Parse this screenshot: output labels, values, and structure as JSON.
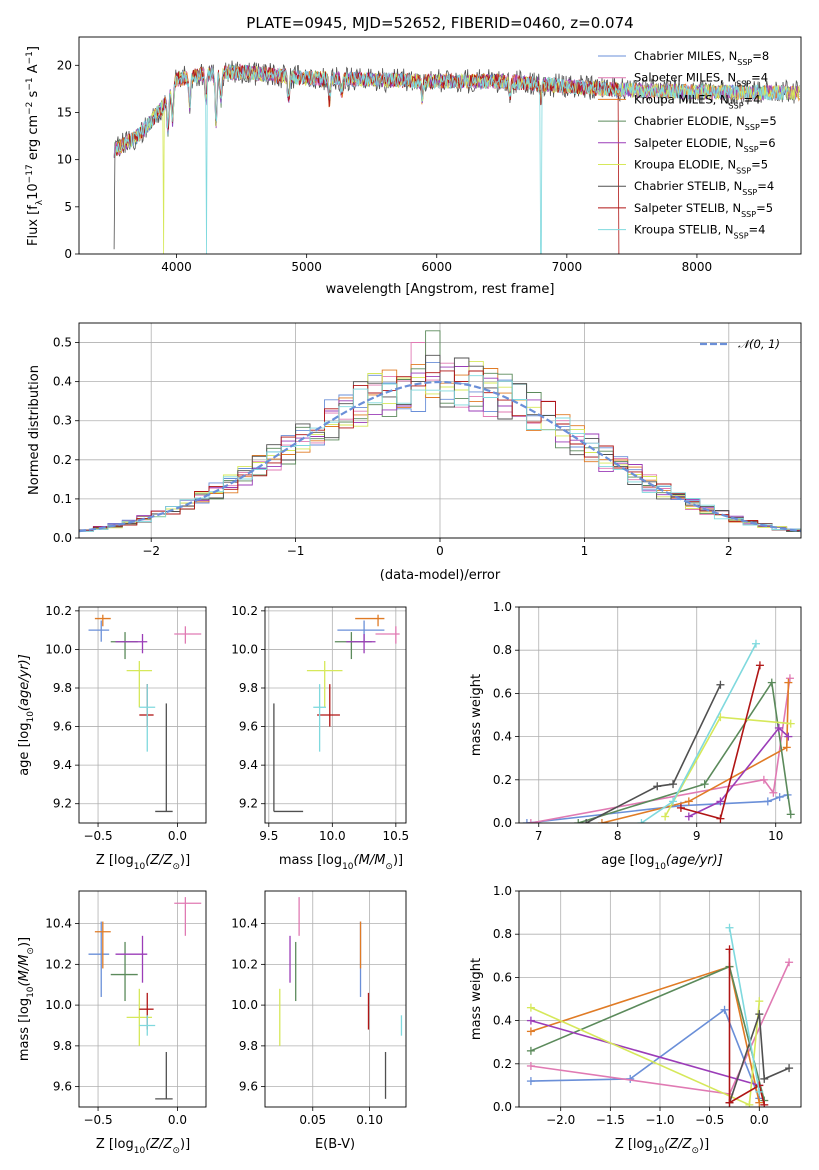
{
  "title": "PLATE=0945, MJD=52652, FIBERID=0460, z=0.074",
  "series": [
    {
      "name": "Chabrier MILES, N<sub>SSP</sub>=8",
      "label_main": "Chabrier MILES, N",
      "label_sub": "SSP",
      "label_tail": "=8",
      "color": "#6a8fd8"
    },
    {
      "name": "Salpeter MILES",
      "label_main": "Salpeter MILES, N",
      "label_sub": "SSP",
      "label_tail": "=4",
      "color": "#e07ab3"
    },
    {
      "name": "Kroupa MILES",
      "label_main": "Kroupa MILES, N",
      "label_sub": "SSP",
      "label_tail": "=4",
      "color": "#e07b25"
    },
    {
      "name": "Chabrier ELODIE",
      "label_main": "Chabrier ELODIE, N",
      "label_sub": "SSP",
      "label_tail": "=5",
      "color": "#5b8a5b"
    },
    {
      "name": "Salpeter ELODIE",
      "label_main": "Salpeter ELODIE, N",
      "label_sub": "SSP",
      "label_tail": "=6",
      "color": "#9b3db8"
    },
    {
      "name": "Kroupa ELODIE",
      "label_main": "Kroupa ELODIE, N",
      "label_sub": "SSP",
      "label_tail": "=5",
      "color": "#d6e85a"
    },
    {
      "name": "Chabrier STELIB",
      "label_main": "Chabrier STELIB, N",
      "label_sub": "SSP",
      "label_tail": "=4",
      "color": "#505050"
    },
    {
      "name": "Salpeter STELIB",
      "label_main": "Salpeter STELIB, N",
      "label_sub": "SSP",
      "label_tail": "=5",
      "color": "#b01515"
    },
    {
      "name": "Kroupa STELIB",
      "label_main": "Kroupa STELIB, N",
      "label_sub": "SSP",
      "label_tail": "=4",
      "color": "#7fd9de"
    }
  ],
  "chart_data": [
    {
      "id": "spectrum",
      "type": "line",
      "xlabel": "wavelength [Angstrom, rest frame]",
      "ylabel": "Flux [f_λ 10^-17 erg cm^-2 s^-1 A^-1]",
      "xlim": [
        3250,
        8800
      ],
      "ylim": [
        0,
        23
      ],
      "xticks": [
        4000,
        5000,
        6000,
        7000,
        8000
      ],
      "yticks": [
        0,
        5,
        10,
        15,
        20
      ],
      "grid": false,
      "legend": "top-right",
      "continuum": [
        [
          3520,
          11
        ],
        [
          3700,
          12.5
        ],
        [
          3800,
          14
        ],
        [
          3900,
          15.8
        ],
        [
          4000,
          18.5
        ],
        [
          4200,
          19
        ],
        [
          4500,
          19.3
        ],
        [
          5000,
          18.6
        ],
        [
          5500,
          18.5
        ],
        [
          6000,
          18.3
        ],
        [
          6500,
          18.3
        ],
        [
          7000,
          17.8
        ],
        [
          7400,
          17.4
        ],
        [
          7600,
          17.3
        ],
        [
          8000,
          17.2
        ],
        [
          8500,
          17.1
        ],
        [
          8800,
          17.1
        ]
      ],
      "absorption": [
        [
          3934,
          3.5
        ],
        [
          3969,
          3.5
        ],
        [
          4101,
          3
        ],
        [
          4227,
          2.5
        ],
        [
          4304,
          5
        ],
        [
          4340,
          3
        ],
        [
          4861,
          2.5
        ],
        [
          5175,
          2.5
        ],
        [
          5270,
          1.5
        ],
        [
          5890,
          2
        ],
        [
          6563,
          1.5
        ],
        [
          6800,
          1.5
        ]
      ],
      "drops": [
        [
          3520,
          0.5
        ],
        [
          3900,
          0
        ],
        [
          4230,
          0
        ],
        [
          6800,
          0
        ],
        [
          7400,
          0
        ]
      ]
    },
    {
      "id": "residuals",
      "type": "histogram",
      "xlabel": "(data-model)/error",
      "ylabel": "Normed distribution",
      "xlim": [
        -2.5,
        2.5
      ],
      "ylim": [
        0,
        0.55
      ],
      "xticks": [
        -2,
        -1,
        0,
        1,
        2
      ],
      "yticks": [
        0.0,
        0.1,
        0.2,
        0.3,
        0.4,
        0.5
      ],
      "grid": true,
      "bin_width": 0.1,
      "reference_curve": "𝒩(0, 1)",
      "legend": "top-right"
    },
    {
      "id": "age-vs-Z",
      "type": "scatter",
      "xlabel_pre": "Z [log",
      "xlabel_sub": "10",
      "xlabel_post": "(Z/Z",
      "xlabel_sun": "⊙",
      "xlabel_end": ")]",
      "ylabel_pre": "age  [log",
      "ylabel_sub": "10",
      "ylabel_post": "(age/yr)]",
      "xlim": [
        -0.62,
        0.18
      ],
      "ylim": [
        9.1,
        10.22
      ],
      "xticks": [
        -0.5,
        0.0
      ],
      "yticks": [
        9.2,
        9.4,
        9.6,
        9.8,
        10.0,
        10.2
      ],
      "grid": true
    },
    {
      "id": "age-vs-mass",
      "type": "scatter",
      "xlabel_pre": "mass [log",
      "xlabel_sub": "10",
      "xlabel_post": "(M/M",
      "xlabel_sun": "⊙",
      "xlabel_end": ")]",
      "xlim": [
        9.47,
        10.58
      ],
      "ylim": [
        9.1,
        10.22
      ],
      "xticks": [
        9.5,
        10.0,
        10.5
      ],
      "yticks": [
        9.2,
        9.4,
        9.6,
        9.8,
        10.0,
        10.2
      ],
      "grid": true
    },
    {
      "id": "weight-vs-age",
      "type": "line",
      "xlabel_pre": "age  [log",
      "xlabel_sub": "10",
      "xlabel_post": "(age/yr)]",
      "ylabel": "mass weight",
      "xlim": [
        6.75,
        10.32
      ],
      "ylim": [
        0,
        1.0
      ],
      "xticks": [
        7,
        8,
        9,
        10
      ],
      "yticks": [
        0.0,
        0.2,
        0.4,
        0.6,
        0.8,
        1.0
      ],
      "grid": true
    },
    {
      "id": "mass-vs-Z",
      "type": "scatter",
      "xlabel_pre": "Z [log",
      "xlabel_sub": "10",
      "xlabel_post": "(Z/Z",
      "xlabel_sun": "⊙",
      "xlabel_end": ")]",
      "ylabel_pre": "mass [log",
      "ylabel_sub": "10",
      "ylabel_post": "(M/M",
      "ylabel_sun": "⊙",
      "ylabel_end": ")]",
      "xlim": [
        -0.62,
        0.18
      ],
      "ylim": [
        9.5,
        10.56
      ],
      "xticks": [
        -0.5,
        0.0
      ],
      "yticks": [
        9.6,
        9.8,
        10.0,
        10.2,
        10.4
      ],
      "grid": true
    },
    {
      "id": "mass-vs-EBV",
      "type": "scatter",
      "xlabel": "E(B-V)",
      "xlim": [
        0.008,
        0.132
      ],
      "ylim": [
        9.5,
        10.56
      ],
      "xticks": [
        0.05,
        0.1
      ],
      "xticklabels": [
        "0.05",
        "0.10"
      ],
      "yticks": [
        9.6,
        9.8,
        10.0,
        10.2,
        10.4
      ],
      "grid": true
    },
    {
      "id": "weight-vs-Z",
      "type": "line",
      "xlabel_pre": "Z [log",
      "xlabel_sub": "10",
      "xlabel_post": "(Z/Z",
      "xlabel_sun": "⊙",
      "xlabel_end": ")]",
      "ylabel": "mass weight",
      "xlim": [
        -2.42,
        0.42
      ],
      "ylim": [
        0,
        1.0
      ],
      "xticks": [
        -2.0,
        -1.5,
        -1.0,
        -0.5,
        0.0
      ],
      "yticks": [
        0.0,
        0.2,
        0.4,
        0.6,
        0.8,
        1.0
      ],
      "grid": true
    }
  ],
  "fits": [
    {
      "Z": -0.48,
      "Zlo": 0.08,
      "Zhi": 0.05,
      "age": 10.1,
      "agelo": 0.06,
      "agehi": 0.05,
      "mass": 10.25,
      "masslo": 0.21,
      "masshi": 0.16,
      "ebv": 0.092,
      "ebvlo": 0.0,
      "ebvhi": 0.0
    },
    {
      "Z": 0.05,
      "Zlo": 0.07,
      "Zhi": 0.1,
      "age": 10.08,
      "agelo": 0.05,
      "agehi": 0.04,
      "mass": 10.5,
      "masslo": 0.16,
      "masshi": 0.03,
      "ebv": 0.038,
      "ebvlo": 0.0,
      "ebvhi": 0.0
    },
    {
      "Z": -0.47,
      "Zlo": 0.05,
      "Zhi": 0.05,
      "age": 10.16,
      "agelo": 0.04,
      "agehi": 0.02,
      "mass": 10.36,
      "masslo": 0.18,
      "masshi": 0.05,
      "ebv": 0.092,
      "ebvlo": 0.0,
      "ebvhi": 0.0
    },
    {
      "Z": -0.33,
      "Zlo": 0.09,
      "Zhi": 0.08,
      "age": 10.04,
      "agelo": 0.09,
      "agehi": 0.05,
      "mass": 10.15,
      "masslo": 0.13,
      "masshi": 0.16,
      "ebv": 0.035,
      "ebvlo": 0.0,
      "ebvhi": 0.0
    },
    {
      "Z": -0.22,
      "Zlo": 0.17,
      "Zhi": 0.03,
      "age": 10.04,
      "agelo": 0.06,
      "agehi": 0.04,
      "mass": 10.25,
      "masslo": 0.14,
      "masshi": 0.09,
      "ebv": 0.03,
      "ebvlo": 0.0,
      "ebvhi": 0.0
    },
    {
      "Z": -0.24,
      "Zlo": 0.08,
      "Zhi": 0.08,
      "age": 9.89,
      "agelo": 0.19,
      "agehi": 0.05,
      "mass": 9.94,
      "masslo": 0.14,
      "masshi": 0.14,
      "ebv": 0.021,
      "ebvlo": 0.0,
      "ebvhi": 0.0
    },
    {
      "Z": -0.07,
      "Zlo": 0.07,
      "Zhi": 0.04,
      "age": 9.16,
      "agelo": 0.0,
      "agehi": 0.56,
      "mass": 9.54,
      "masslo": 0.0,
      "masshi": 0.23,
      "ebv": 0.114,
      "ebvlo": 0.0,
      "ebvhi": 0.0
    },
    {
      "Z": -0.19,
      "Zlo": 0.05,
      "Zhi": 0.04,
      "age": 9.66,
      "agelo": 0.06,
      "agehi": 0.16,
      "mass": 9.98,
      "masslo": 0.1,
      "masshi": 0.08,
      "ebv": 0.099,
      "ebvlo": 0.0,
      "ebvhi": 0.0
    },
    {
      "Z": -0.19,
      "Zlo": 0.05,
      "Zhi": 0.05,
      "age": 9.7,
      "agelo": 0.23,
      "agehi": 0.12,
      "mass": 9.9,
      "masslo": 0.05,
      "masshi": 0.05,
      "ebv": 0.128,
      "ebvlo": 0.0,
      "ebvhi": 0.0
    }
  ],
  "weights_age": [
    [
      [
        6.85,
        0.0
      ],
      [
        8.8,
        0.08
      ],
      [
        9.9,
        0.1
      ],
      [
        10.05,
        0.12
      ],
      [
        10.15,
        0.13
      ]
    ],
    [
      [
        6.9,
        0.0
      ],
      [
        9.85,
        0.2
      ],
      [
        9.97,
        0.14
      ],
      [
        10.18,
        0.67
      ]
    ],
    [
      [
        7.8,
        0.0
      ],
      [
        8.9,
        0.1
      ],
      [
        10.14,
        0.35
      ],
      [
        10.16,
        0.65
      ]
    ],
    [
      [
        7.5,
        0.0
      ],
      [
        9.1,
        0.18
      ],
      [
        9.95,
        0.65
      ],
      [
        10.19,
        0.04
      ]
    ],
    [
      [
        8.9,
        0.03
      ],
      [
        9.3,
        0.1
      ],
      [
        10.04,
        0.44
      ],
      [
        10.16,
        0.4
      ]
    ],
    [
      [
        8.6,
        0.03
      ],
      [
        9.3,
        0.49
      ],
      [
        10.19,
        0.46
      ]
    ],
    [
      [
        7.6,
        0.0
      ],
      [
        8.5,
        0.17
      ],
      [
        8.7,
        0.18
      ],
      [
        9.3,
        0.64
      ]
    ],
    [
      [
        8.8,
        0.07
      ],
      [
        9.3,
        0.02
      ],
      [
        9.8,
        0.73
      ]
    ],
    [
      [
        8.3,
        0.0
      ],
      [
        8.7,
        0.1
      ],
      [
        9.75,
        0.83
      ]
    ]
  ],
  "weights_Z": [
    [
      [
        -2.3,
        0.12
      ],
      [
        -1.3,
        0.13
      ],
      [
        -0.35,
        0.45
      ],
      [
        0.0,
        0.04
      ]
    ],
    [
      [
        -2.3,
        0.19
      ],
      [
        -0.3,
        0.06
      ],
      [
        0.3,
        0.67
      ]
    ],
    [
      [
        -2.3,
        0.35
      ],
      [
        -0.3,
        0.65
      ],
      [
        0.0,
        0.02
      ]
    ],
    [
      [
        -2.3,
        0.26
      ],
      [
        -0.3,
        0.65
      ],
      [
        0.05,
        0.03
      ]
    ],
    [
      [
        -2.3,
        0.4
      ],
      [
        0.0,
        0.1
      ]
    ],
    [
      [
        -2.3,
        0.46
      ],
      [
        -0.1,
        0.01
      ],
      [
        0.0,
        0.49
      ]
    ],
    [
      [
        -0.3,
        0.02
      ],
      [
        0.0,
        0.43
      ],
      [
        0.05,
        0.13
      ],
      [
        0.3,
        0.18
      ]
    ],
    [
      [
        -0.3,
        0.73
      ],
      [
        -0.3,
        0.02
      ],
      [
        0.0,
        0.1
      ],
      [
        0.05,
        0.01
      ]
    ],
    [
      [
        -0.3,
        0.83
      ],
      [
        0.0,
        0.07
      ]
    ]
  ]
}
